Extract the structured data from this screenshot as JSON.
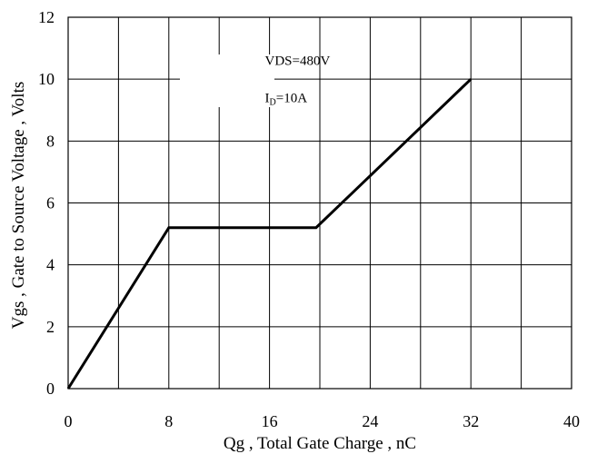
{
  "chart_data": {
    "type": "line",
    "title": "",
    "xlabel": "Qg , Total Gate Charge , nC",
    "ylabel": "Vgs ,  Gate to Source Voltage , Volts",
    "xlim": [
      0,
      40
    ],
    "ylim": [
      0,
      12
    ],
    "xticks": [
      0,
      8,
      16,
      24,
      32,
      40
    ],
    "yticks": [
      0,
      2,
      4,
      6,
      8,
      10,
      12
    ],
    "xtick_labels": [
      "0",
      "8",
      "16",
      "24",
      "32",
      "40"
    ],
    "ytick_labels": [
      "0",
      "2",
      "4",
      "6",
      "8",
      "10",
      "12"
    ],
    "grid": true,
    "grid_x_step": 4,
    "grid_y_step": 2,
    "series": [
      {
        "x": [
          0,
          8,
          19.7,
          32
        ],
        "y": [
          0,
          5.2,
          5.2,
          10
        ],
        "color": "#000000"
      }
    ],
    "annotations": [
      {
        "text": "VDS=480V",
        "x": 16.5,
        "y": 10.6
      },
      {
        "text_main": "I",
        "text_sub": "D",
        "text_rest": "=10A",
        "x": 16.5,
        "y": 9.4
      }
    ]
  }
}
